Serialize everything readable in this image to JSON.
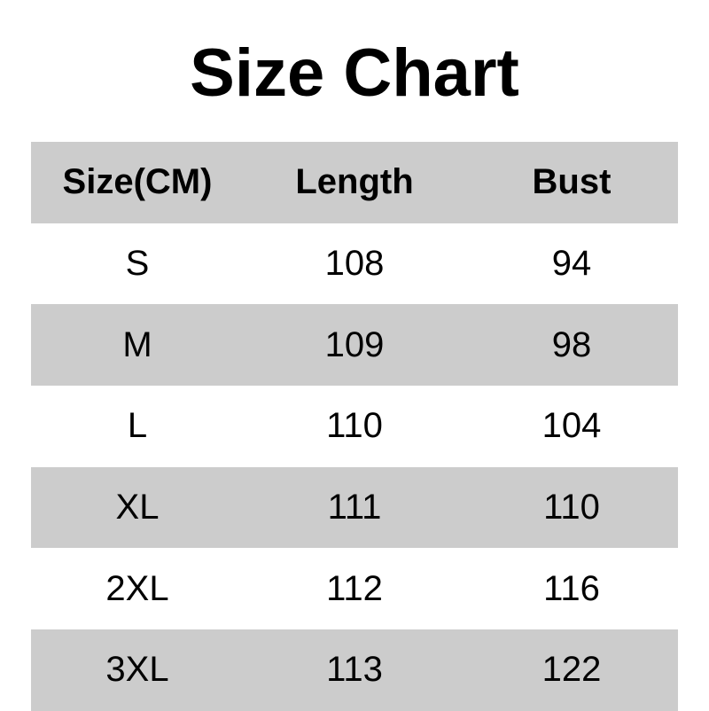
{
  "title": "Size Chart",
  "colors": {
    "stripe": "#cccccc",
    "background": "#ffffff"
  },
  "headers": [
    "Size(CM)",
    "Length",
    "Bust"
  ],
  "rows": [
    [
      "S",
      "108",
      "94"
    ],
    [
      "M",
      "109",
      "98"
    ],
    [
      "L",
      "110",
      "104"
    ],
    [
      "XL",
      "111",
      "110"
    ],
    [
      "2XL",
      "112",
      "116"
    ],
    [
      "3XL",
      "113",
      "122"
    ]
  ]
}
